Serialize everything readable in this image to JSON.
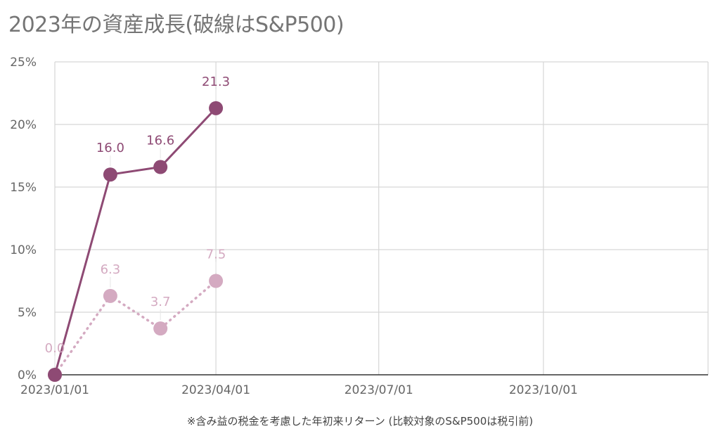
{
  "chart_data": {
    "type": "line",
    "title": "2023年の資産成長(破線はS&P500)",
    "xlabel": "",
    "ylabel": "",
    "note": "※含み益の税金を考慮した年初来リターン (比較対象のS&P500は税引前)",
    "x_ticks": [
      "2023/01/01",
      "2023/04/01",
      "2023/07/01",
      "2023/10/01"
    ],
    "x_range": [
      "2023/01/01",
      "2023/12/31"
    ],
    "y_ticks": [
      "0%",
      "5%",
      "10%",
      "15%",
      "20%",
      "25%"
    ],
    "ylim": [
      0,
      25
    ],
    "grid": true,
    "series": [
      {
        "color": "#8e4a74",
        "style": "solid",
        "x": [
          "2023/01/01",
          "2023/02/01",
          "2023/03/01",
          "2023/04/01"
        ],
        "values": [
          0.0,
          16.0,
          16.6,
          21.3
        ],
        "labels": [
          "",
          "16.0",
          "16.6",
          "21.3"
        ]
      },
      {
        "name": "S&P500",
        "color": "#d4aac1",
        "style": "dotted",
        "x": [
          "2023/01/01",
          "2023/02/01",
          "2023/03/01",
          "2023/04/01"
        ],
        "values": [
          0.0,
          6.3,
          3.7,
          7.5
        ],
        "labels": [
          "0.0",
          "6.3",
          "3.7",
          "7.5"
        ]
      }
    ]
  }
}
